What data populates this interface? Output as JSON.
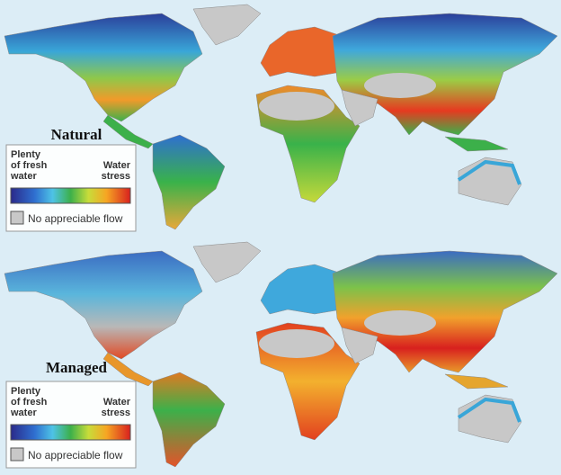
{
  "panels": [
    {
      "title": "Natural",
      "legend": {
        "low_label": [
          "Plenty",
          "of fresh",
          "water"
        ],
        "high_label": [
          "Water",
          "stress"
        ],
        "no_flow_label": "No appreciable flow"
      }
    },
    {
      "title": "Managed",
      "legend": {
        "low_label": [
          "Plenty",
          "of fresh",
          "water"
        ],
        "high_label": [
          "Water",
          "stress"
        ],
        "no_flow_label": "No appreciable flow"
      }
    }
  ]
}
